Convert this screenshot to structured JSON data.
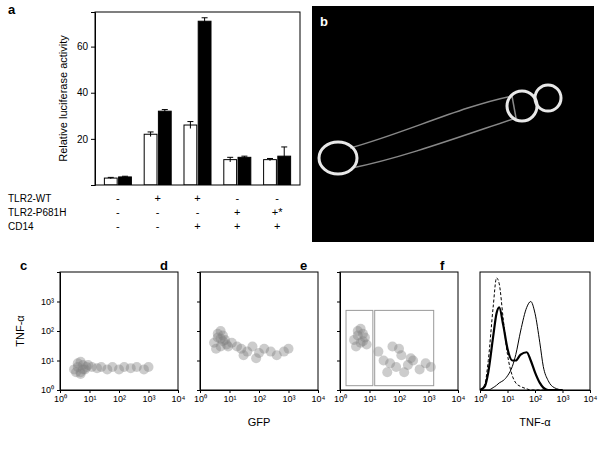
{
  "chart_data": [
    {
      "type": "bar",
      "title": "a",
      "ylabel": "Relative luciferase activity",
      "categories": [
        null,
        null,
        null,
        null,
        null
      ],
      "series": [
        {
          "color": "#ffffff",
          "values": [
            3,
            22,
            26,
            11,
            11
          ],
          "errors": [
            0.3,
            1,
            1.5,
            1,
            0.5
          ]
        },
        {
          "color": "#000000",
          "values": [
            3.5,
            32,
            71,
            12,
            12.5
          ],
          "errors": [
            0.3,
            0.7,
            1.5,
            0.5,
            4
          ]
        }
      ],
      "ylim": [
        0,
        75
      ],
      "yticks": [
        20,
        40,
        60
      ],
      "conditions": [
        {
          "label": "TLR2-WT",
          "values": [
            "-",
            "+",
            "+",
            "-",
            "-"
          ]
        },
        {
          "label": "TLR2-P681H",
          "values": [
            "-",
            "-",
            "-",
            "+",
            "+*"
          ]
        },
        {
          "label": "CD14",
          "values": [
            "-",
            "-",
            "+",
            "+",
            "+"
          ]
        }
      ]
    },
    {
      "type": "image",
      "title": "b"
    },
    {
      "type": "scatter",
      "title": "c",
      "ylabel": "TNF-α",
      "log": true,
      "tick_labels": true,
      "color": "#808080",
      "x": [
        3,
        4,
        5,
        6,
        7,
        4,
        5,
        6,
        8,
        3.5,
        5,
        9,
        12,
        18,
        25,
        40,
        60,
        100,
        150,
        250,
        400,
        700,
        1000
      ],
      "values": [
        5,
        6,
        4,
        7,
        5,
        8,
        9,
        5,
        6,
        4,
        3.5,
        7,
        6,
        5.5,
        6,
        5,
        6,
        5,
        6,
        5.5,
        6,
        5,
        6
      ],
      "xlim": [
        1,
        10000
      ],
      "ylim": [
        1,
        10000
      ],
      "xticks": [
        {
          "value": 1,
          "label": "10⁰"
        },
        {
          "value": 10,
          "label": "10¹"
        },
        {
          "value": 100,
          "label": "10²"
        },
        {
          "value": 1000,
          "label": "10³"
        },
        {
          "value": 10000,
          "label": "10⁴"
        }
      ],
      "yticks": [
        {
          "value": 1,
          "label": "10⁰"
        },
        {
          "value": 10,
          "label": "10¹"
        },
        {
          "value": 100,
          "label": "10²"
        },
        {
          "value": 1000,
          "label": "10³"
        }
      ]
    },
    {
      "type": "scatter",
      "title": "d",
      "xlabel": "GFP",
      "log": true,
      "tick_labels": "x",
      "color": "#808080",
      "x": [
        3,
        4,
        5,
        6,
        7,
        4,
        5,
        6,
        8,
        3.5,
        5,
        9,
        12,
        18,
        25,
        40,
        60,
        100,
        150,
        250,
        400,
        700,
        1000,
        30,
        80
      ],
      "values": [
        40,
        60,
        30,
        70,
        50,
        80,
        100,
        45,
        35,
        25,
        55,
        30,
        40,
        30,
        25,
        20,
        30,
        18,
        25,
        20,
        15,
        20,
        25,
        15,
        12
      ],
      "xlim": [
        1,
        10000
      ],
      "ylim": [
        1,
        10000
      ],
      "xticks": [
        {
          "value": 1,
          "label": "10⁰"
        },
        {
          "value": 10,
          "label": "10¹"
        },
        {
          "value": 100,
          "label": "10²"
        },
        {
          "value": 1000,
          "label": "10³"
        },
        {
          "value": 10000,
          "label": "10⁴"
        }
      ],
      "yticks": [
        1,
        10,
        100,
        1000
      ]
    },
    {
      "type": "scatter",
      "title": "e",
      "log": true,
      "tick_labels": "x",
      "color": "#808080",
      "x": [
        3,
        4,
        5,
        6,
        7,
        4,
        5,
        6,
        8,
        3.5,
        20,
        30,
        50,
        80,
        120,
        200,
        300,
        500,
        800,
        1200,
        40,
        100,
        250,
        60,
        150
      ],
      "values": [
        50,
        70,
        40,
        80,
        60,
        100,
        120,
        45,
        35,
        30,
        20,
        10,
        8,
        6,
        15,
        7,
        10,
        5,
        8,
        6,
        4,
        25,
        12,
        30,
        4
      ],
      "gates": [
        {
          "x": [
            1.6,
            13
          ],
          "y": [
            1.4,
            500
          ]
        },
        {
          "x": [
            15,
            1500
          ],
          "y": [
            1.4,
            500
          ]
        }
      ],
      "xlim": [
        1,
        10000
      ],
      "ylim": [
        1,
        10000
      ],
      "xticks": [
        {
          "value": 1,
          "label": "10⁰"
        },
        {
          "value": 10,
          "label": "10¹"
        },
        {
          "value": 100,
          "label": "10²"
        },
        {
          "value": 1000,
          "label": "10³"
        },
        {
          "value": 10000,
          "label": "10⁴"
        }
      ],
      "yticks": [
        1,
        10,
        100,
        1000
      ]
    },
    {
      "type": "line",
      "title": "f",
      "xlabel": "TNF-α",
      "log": "x",
      "tick_labels": "x",
      "x": [
        1,
        1.5,
        2,
        3,
        4,
        5,
        7,
        10,
        15,
        20,
        30,
        50,
        70,
        100,
        150,
        200,
        300,
        500,
        1000
      ],
      "series": [
        {
          "color": "#000000",
          "line_style": "dashed",
          "values": [
            0,
            5,
            25,
            70,
            95,
            90,
            60,
            30,
            12,
            6,
            3,
            1,
            0,
            0,
            0,
            0,
            0,
            0,
            0
          ]
        },
        {
          "color": "#000000",
          "line_style": "thick",
          "values": [
            0,
            3,
            15,
            45,
            65,
            70,
            55,
            35,
            25,
            25,
            30,
            32,
            25,
            15,
            6,
            2,
            0,
            0,
            0
          ]
        },
        {
          "color": "#000000",
          "line_style": "solid",
          "values": [
            0,
            0,
            0,
            2,
            4,
            6,
            8,
            12,
            20,
            30,
            50,
            70,
            75,
            65,
            40,
            20,
            8,
            2,
            0
          ]
        }
      ],
      "xlim": [
        1,
        10000
      ],
      "ylim": [
        0,
        100
      ],
      "xticks": [
        {
          "value": 1,
          "label": "10⁰"
        },
        {
          "value": 10,
          "label": "10¹"
        },
        {
          "value": 100,
          "label": "10²"
        },
        {
          "value": 1000,
          "label": "10³"
        },
        {
          "value": 10000,
          "label": "10⁴"
        }
      ]
    }
  ]
}
